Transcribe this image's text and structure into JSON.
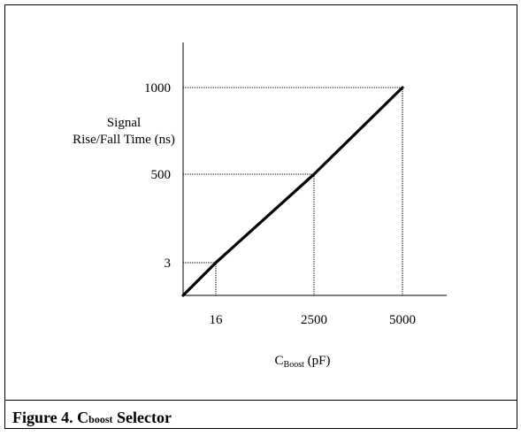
{
  "figure": {
    "caption_prefix": "Figure 4. C",
    "caption_subscript": "boost",
    "caption_suffix": " Selector"
  },
  "chart_data": {
    "type": "line",
    "ylabel_lines": [
      "Signal",
      "Rise/Fall Time (ns)"
    ],
    "xlabel_main": "C",
    "xlabel_sub": "Boost",
    "xlabel_unit": " (pF)",
    "x_ticks": [
      {
        "label": "16",
        "value": 16
      },
      {
        "label": "2500",
        "value": 2500
      },
      {
        "label": "5000",
        "value": 5000
      }
    ],
    "y_ticks": [
      {
        "label": "3",
        "value": 3
      },
      {
        "label": "500",
        "value": 500
      },
      {
        "label": "1000",
        "value": 1000
      }
    ],
    "series": [
      {
        "x": [
          0,
          16,
          2500,
          5000
        ],
        "y": [
          0,
          3,
          500,
          1000
        ]
      }
    ],
    "guide_points": [
      {
        "x": 16,
        "y": 3
      },
      {
        "x": 2500,
        "y": 500
      },
      {
        "x": 5000,
        "y": 1000
      }
    ],
    "axis_scale": "non-uniform",
    "grid": false
  }
}
